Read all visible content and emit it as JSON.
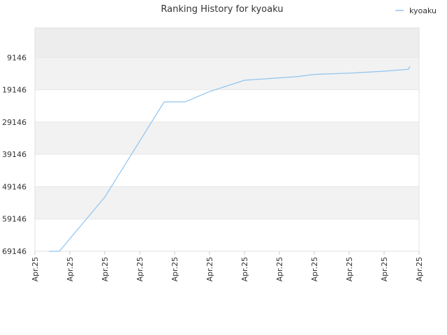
{
  "chart_data": {
    "type": "line",
    "title": "Ranking History for kyoaku",
    "xlabel": "",
    "ylabel": "",
    "y_reversed": true,
    "ylim": [
      69146,
      0
    ],
    "ytick_labels": [
      "9146",
      "19146",
      "29146",
      "39146",
      "49146",
      "59146",
      "69146"
    ],
    "ytick_values": [
      9146,
      19146,
      29146,
      39146,
      49146,
      59146,
      69146
    ],
    "xtick_labels": [
      "Apr.25",
      "Apr.25",
      "Apr.25",
      "Apr.25",
      "Apr.25",
      "Apr.25",
      "Apr.25",
      "Apr.25",
      "Apr.25",
      "Apr.25",
      "Apr.25",
      "Apr.25"
    ],
    "xlim": [
      0,
      11
    ],
    "legend": {
      "position": "top-right"
    },
    "grid": true,
    "colors": {
      "series": "#8ec4f0",
      "band_dark": "#f2f2f2",
      "band_top": "#ededed",
      "grid": "#e6e6e6"
    },
    "series": [
      {
        "name": "kyoaku",
        "x": [
          0.4,
          0.7,
          2.0,
          3.7,
          4.3,
          5.0,
          6.0,
          7.5,
          8.0,
          9.0,
          10.0,
          10.7,
          10.74
        ],
        "y": [
          69146,
          69146,
          52400,
          22900,
          22900,
          19700,
          16200,
          15100,
          14400,
          14000,
          13400,
          12800,
          11900
        ]
      }
    ]
  }
}
